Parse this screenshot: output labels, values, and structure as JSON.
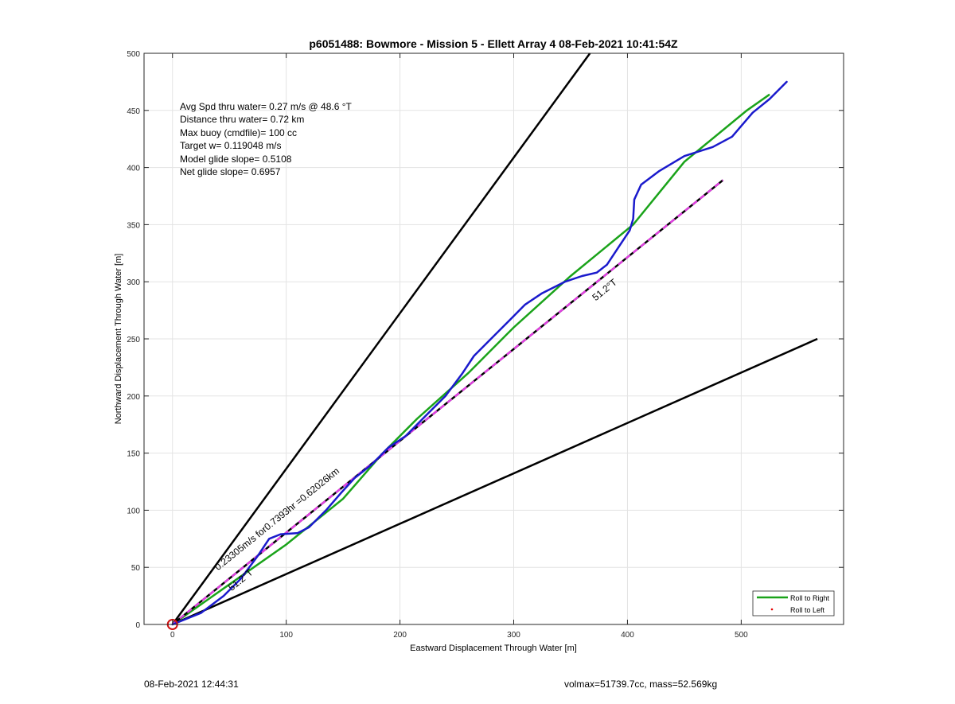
{
  "chart_data": {
    "type": "line",
    "title": "p6051488: Bowmore - Mission 5 - Ellett Array 4 08-Feb-2021 10:41:54Z",
    "xlabel": "Eastward Displacement Through Water [m]",
    "ylabel": "Northward Displacement Through Water [m]",
    "xlim": [
      -25,
      590
    ],
    "ylim": [
      0,
      500
    ],
    "xticks": [
      0,
      100,
      200,
      300,
      400,
      500
    ],
    "yticks": [
      0,
      50,
      100,
      150,
      200,
      250,
      300,
      350,
      400,
      450,
      500
    ],
    "grid": true,
    "legend_position": "bottom-right",
    "legend": [
      {
        "label": "Roll to Right",
        "color": "#1aa31a",
        "style": "line"
      },
      {
        "label": "Roll to Left",
        "color": "#e60000",
        "style": "dot"
      }
    ],
    "stats": [
      "Avg Spd thru water=  0.27 m/s @  48.6 °T",
      "Distance thru water=  0.72 km",
      "Max buoy (cmdfile)= 100 cc",
      "Target w= 0.119048 m/s",
      "Model glide slope= 0.5108",
      "Net glide slope= 0.6957"
    ],
    "annotations": [
      {
        "text": "0.23305m/s for0.7393hr =0.62026km",
        "x": 40,
        "y": 47,
        "angle_deg": 39
      },
      {
        "text": "51.2°T",
        "x": 52,
        "y": 29,
        "angle_deg": 39
      },
      {
        "text": "51.2°T",
        "x": 372,
        "y": 283,
        "angle_deg": 39
      }
    ],
    "series": [
      {
        "kind": "cone-edge",
        "color": "#000000",
        "points": [
          [
            0,
            0
          ],
          [
            367,
            500
          ]
        ]
      },
      {
        "kind": "cone-edge",
        "color": "#000000",
        "points": [
          [
            0,
            0
          ],
          [
            567,
            250
          ]
        ]
      },
      {
        "name": "Roll to Right",
        "kind": "line",
        "color": "#1aa31a",
        "points": [
          [
            0,
            0
          ],
          [
            50,
            35
          ],
          [
            100,
            70
          ],
          [
            150,
            110
          ],
          [
            185,
            150
          ],
          [
            215,
            180
          ],
          [
            260,
            220
          ],
          [
            300,
            260
          ],
          [
            350,
            305
          ],
          [
            405,
            350
          ],
          [
            450,
            405
          ],
          [
            505,
            450
          ],
          [
            525,
            464
          ]
        ]
      },
      {
        "kind": "dashed-heading",
        "color": "#000000",
        "dash_color": "#e040e0",
        "points": [
          [
            0,
            0
          ],
          [
            484,
            389
          ]
        ]
      },
      {
        "kind": "glider-track",
        "color": "#1a1acc",
        "points": [
          [
            0,
            0
          ],
          [
            25,
            10
          ],
          [
            45,
            25
          ],
          [
            60,
            40
          ],
          [
            75,
            60
          ],
          [
            85,
            75
          ],
          [
            95,
            79
          ],
          [
            110,
            80
          ],
          [
            120,
            85
          ],
          [
            135,
            100
          ],
          [
            148,
            115
          ],
          [
            160,
            128
          ],
          [
            175,
            140
          ],
          [
            190,
            155
          ],
          [
            205,
            165
          ],
          [
            225,
            185
          ],
          [
            240,
            200
          ],
          [
            255,
            220
          ],
          [
            265,
            235
          ],
          [
            280,
            250
          ],
          [
            295,
            265
          ],
          [
            310,
            280
          ],
          [
            325,
            290
          ],
          [
            345,
            300
          ],
          [
            360,
            305
          ],
          [
            373,
            308
          ],
          [
            382,
            315
          ],
          [
            392,
            330
          ],
          [
            402,
            345
          ],
          [
            405,
            355
          ],
          [
            406,
            372
          ],
          [
            412,
            385
          ],
          [
            428,
            397
          ],
          [
            450,
            410
          ],
          [
            475,
            418
          ],
          [
            492,
            427
          ],
          [
            510,
            448
          ],
          [
            525,
            460
          ],
          [
            540,
            475
          ]
        ]
      }
    ],
    "origin_marker": {
      "x": 0,
      "y": 0,
      "color": "#d01010"
    }
  },
  "footer": {
    "left": "08-Feb-2021 12:44:31",
    "right": "volmax=51739.7cc, mass=52.569kg"
  }
}
